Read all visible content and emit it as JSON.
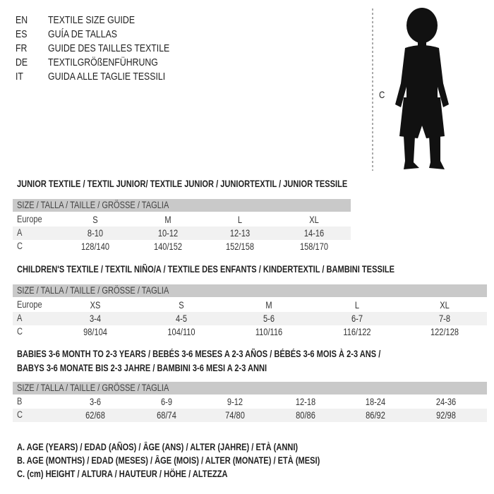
{
  "languages": [
    {
      "code": "EN",
      "title": "TEXTILE SIZE GUIDE"
    },
    {
      "code": "ES",
      "title": "GUÍA DE TALLAS"
    },
    {
      "code": "FR",
      "title": "GUIDE DES TAILLES TEXTILE"
    },
    {
      "code": "DE",
      "title": "TEXTILGRÖßENFÜHRUNG"
    },
    {
      "code": "IT",
      "title": "GUIDA ALLE TAGLIE TESSILI"
    }
  ],
  "figure": {
    "measure_label": "C"
  },
  "junior": {
    "title": "JUNIOR TEXTILE / TEXTIL JUNIOR/ TEXTILE JUNIOR / JUNIORTEXTIL / JUNIOR TESSILE",
    "header": "SIZE / TALLA / TAILLE / GRÖSSE / TAGLIA",
    "rows": [
      {
        "label": "Europe",
        "values": [
          "S",
          "M",
          "L",
          "XL"
        ]
      },
      {
        "label": "A",
        "values": [
          "8-10",
          "10-12",
          "12-13",
          "14-16"
        ]
      },
      {
        "label": "C",
        "values": [
          "128/140",
          "140/152",
          "152/158",
          "158/170"
        ]
      }
    ]
  },
  "children": {
    "title": "CHILDREN'S TEXTILE / TEXTIL NIÑO/A / TEXTILE DES ENFANTS / KINDERTEXTIL / BAMBINI TESSILE",
    "header": "SIZE / TALLA / TAILLE / GRÖSSE / TAGLIA",
    "rows": [
      {
        "label": "Europe",
        "values": [
          "XS",
          "S",
          "M",
          "L",
          "XL"
        ]
      },
      {
        "label": "A",
        "values": [
          "3-4",
          "4-5",
          "5-6",
          "6-7",
          "7-8"
        ]
      },
      {
        "label": "C",
        "values": [
          "98/104",
          "104/110",
          "110/116",
          "116/122",
          "122/128"
        ]
      }
    ]
  },
  "babies": {
    "title_line1": "BABIES 3-6 MONTH TO 2-3 YEARS / BEBÉS 3-6 MESES A 2-3 AÑOS / BÉBÉS 3-6 MOIS À 2-3 ANS /",
    "title_line2": "BABYS 3-6 MONATE BIS 2-3 JAHRE / BAMBINI 3-6 MESI A 2-3 ANNI",
    "header": "SIZE / TALLA / TAILLE / GRÖSSE / TAGLIA",
    "rows": [
      {
        "label": "B",
        "values": [
          "3-6",
          "6-9",
          "9-12",
          "12-18",
          "18-24",
          "24-36"
        ]
      },
      {
        "label": "C",
        "values": [
          "62/68",
          "68/74",
          "74/80",
          "80/86",
          "86/92",
          "92/98"
        ]
      }
    ]
  },
  "legend": [
    "A. AGE (YEARS) / EDAD (AÑOS) / ÂGE (ANS) / ALTER (JAHRE) / ETÀ (ANNI)",
    "B. AGE (MONTHS) / EDAD (MESES) / ÂGE (MOIS) / ALTER (MONATE) / ETÀ (MESI)",
    "C. (cm) HEIGHT / ALTURA / HAUTEUR / HÖHE / ALTEZZA"
  ]
}
